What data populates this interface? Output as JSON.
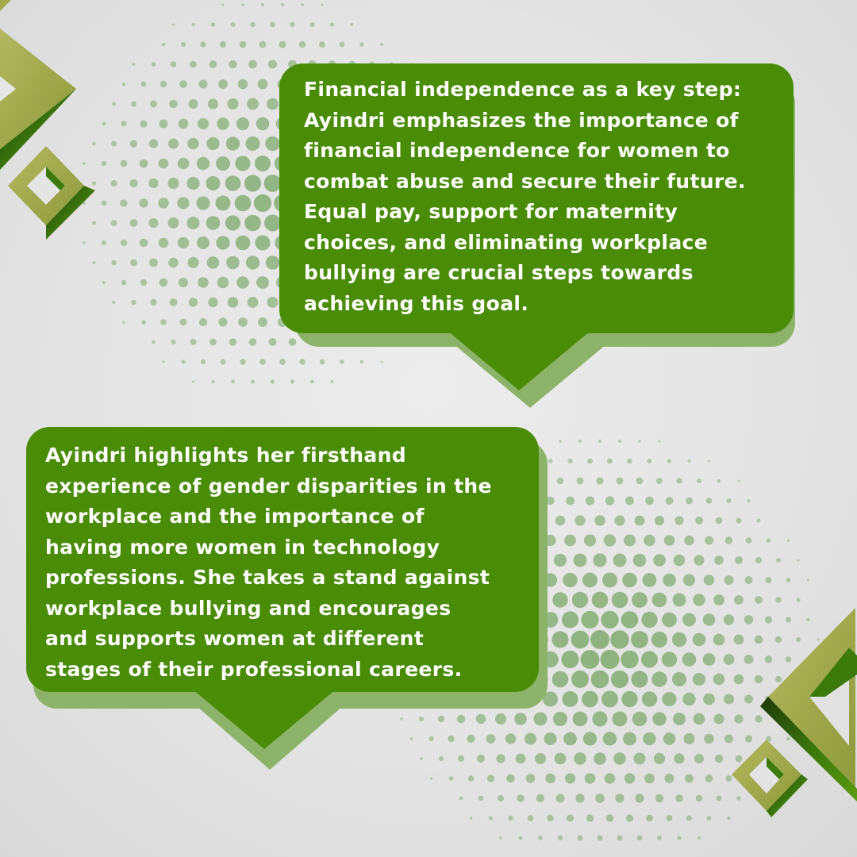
{
  "theme": {
    "bubble_color": "#4a8c06",
    "shadow_color": "#8db36a",
    "text_color": "#ffffff",
    "dot_color": "#6ea05a",
    "diamond_light": "#a4aa4c",
    "diamond_dark": "#2f6e08"
  },
  "bubbles": [
    {
      "text": "Financial independence as a key step:\nAyindri emphasizes the importance of\nfinancial independence for women to\ncombat abuse and secure their future.\nEqual pay, support for maternity\nchoices, and eliminating workplace\nbullying are crucial steps towards\nachieving this goal."
    },
    {
      "text": "Ayindri highlights her firsthand\nexperience of gender disparities in the\nworkplace and the importance of\nhaving more women in technology\nprofessions. She takes a stand against\nworkplace bullying and encourages\nand supports women at different\nstages of their professional careers."
    }
  ],
  "decorations": {
    "icon": "3d-diamond-frame-icon",
    "halftone": "halftone-dot-pattern"
  }
}
